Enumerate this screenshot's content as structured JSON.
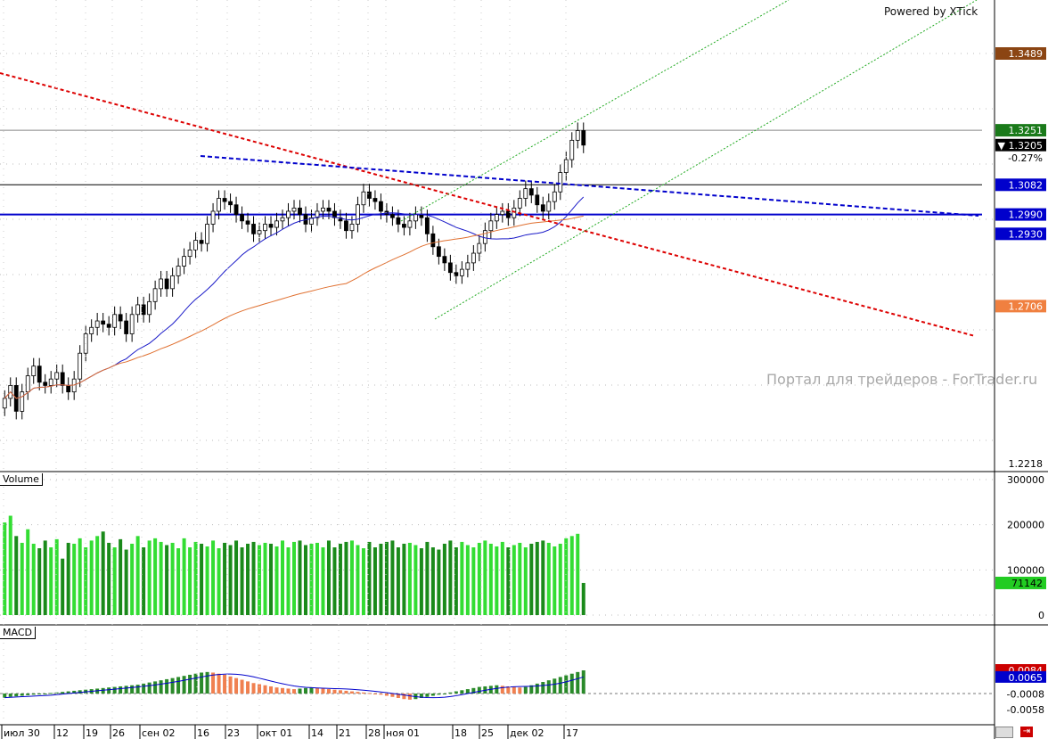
{
  "header": {
    "powered_by": "Powered by XTick",
    "watermark": "Портал для трейдеров - ForTrader.ru"
  },
  "panels": {
    "volume_label": "Volume",
    "macd_label": "MACD"
  },
  "colors": {
    "bull_volume": "#33dd33",
    "bear_volume": "#1a8a1a",
    "ma_fast": "#1a1ac8",
    "ma_slow": "#e07030",
    "trend_red": "#dd0000",
    "trend_blue": "#0000cc",
    "channel_green": "#22aa22",
    "macd_pos": "#2a8a2a",
    "macd_neg": "#f08050"
  },
  "price_badges": [
    {
      "label": "1.3489",
      "bg": "#8b4513",
      "fg": "#ffffff"
    },
    {
      "label": "1.3251",
      "bg": "#1a7a1a",
      "fg": "#ffffff"
    },
    {
      "label": "▼ 1.3205",
      "bg": "#000000",
      "fg": "#ffffff"
    },
    {
      "label": "-0.27%",
      "bg": "#ffffff",
      "fg": "#000000"
    },
    {
      "label": "1.3082",
      "bg": "#0000cc",
      "fg": "#ffffff"
    },
    {
      "label": "1.2990",
      "bg": "#0000cc",
      "fg": "#ffffff"
    },
    {
      "label": "1.2930",
      "bg": "#0000cc",
      "fg": "#ffffff"
    },
    {
      "label": "1.2706",
      "bg": "#f08040",
      "fg": "#ffffff"
    },
    {
      "label": "1.2218",
      "bg": "#ffffff",
      "fg": "#000000"
    }
  ],
  "volume_axis": [
    "300000",
    "200000",
    "100000",
    "0"
  ],
  "volume_badge": "71142",
  "macd_axis": [
    "-0.0008",
    "-0.0058"
  ],
  "macd_badges": [
    {
      "label": "0.0084",
      "bg": "#cc0000",
      "fg": "#ffffff"
    },
    {
      "label": "0.0065",
      "bg": "#0000cc",
      "fg": "#ffffff"
    }
  ],
  "chart_data": {
    "type": "candlestick",
    "x_tick_labels": [
      "июл 30",
      "12",
      "19",
      "26",
      "сен 02",
      "16",
      "23",
      "окт 01",
      "14",
      "21",
      "28",
      "ноя 01",
      "18",
      "25",
      "дек 02",
      "17"
    ],
    "price_range": [
      1.2218,
      1.3489
    ],
    "close_series": [
      1.242,
      1.246,
      1.238,
      1.244,
      1.249,
      1.252,
      1.247,
      1.246,
      1.248,
      1.25,
      1.246,
      1.244,
      1.248,
      1.256,
      1.262,
      1.264,
      1.266,
      1.265,
      1.264,
      1.268,
      1.266,
      1.262,
      1.268,
      1.271,
      1.268,
      1.272,
      1.276,
      1.279,
      1.276,
      1.28,
      1.283,
      1.286,
      1.288,
      1.291,
      1.29,
      1.296,
      1.3,
      1.304,
      1.303,
      1.302,
      1.299,
      1.297,
      1.296,
      1.293,
      1.294,
      1.296,
      1.295,
      1.297,
      1.298,
      1.3,
      1.301,
      1.299,
      1.296,
      1.298,
      1.3,
      1.301,
      1.3,
      1.298,
      1.297,
      1.294,
      1.296,
      1.302,
      1.306,
      1.304,
      1.303,
      1.3,
      1.299,
      1.298,
      1.296,
      1.295,
      1.297,
      1.299,
      1.298,
      1.293,
      1.289,
      1.286,
      1.284,
      1.281,
      1.28,
      1.282,
      1.284,
      1.287,
      1.29,
      1.294,
      1.297,
      1.299,
      1.3,
      1.298,
      1.301,
      1.304,
      1.307,
      1.305,
      1.302,
      1.3,
      1.303,
      1.306,
      1.312,
      1.316,
      1.322,
      1.325,
      1.3205
    ],
    "volume_series": [
      205000,
      220000,
      175000,
      160000,
      190000,
      158000,
      148000,
      165000,
      150000,
      168000,
      125000,
      160000,
      158000,
      170000,
      150000,
      165000,
      175000,
      185000,
      160000,
      150000,
      168000,
      145000,
      158000,
      175000,
      150000,
      165000,
      170000,
      162000,
      155000,
      160000,
      148000,
      170000,
      150000,
      162000,
      158000,
      152000,
      165000,
      148000,
      160000,
      155000,
      165000,
      150000,
      158000,
      162000,
      155000,
      160000,
      158000,
      152000,
      165000,
      150000,
      162000,
      165000,
      155000,
      158000,
      160000,
      150000,
      165000,
      150000,
      158000,
      162000,
      165000,
      155000,
      148000,
      162000,
      150000,
      158000,
      162000,
      165000,
      150000,
      158000,
      160000,
      155000,
      148000,
      162000,
      150000,
      145000,
      158000,
      165000,
      150000,
      162000,
      155000,
      150000,
      160000,
      165000,
      158000,
      152000,
      162000,
      150000,
      155000,
      160000,
      150000,
      158000,
      162000,
      165000,
      160000,
      152000,
      158000,
      170000,
      175000,
      180000,
      71142
    ],
    "macd_series": [
      -0.0015,
      -0.0012,
      -0.001,
      -0.0008,
      -0.0006,
      -0.0004,
      -0.0002,
      0.0,
      0.0002,
      0.0004,
      0.0006,
      0.0008,
      0.001,
      0.0012,
      0.0014,
      0.0016,
      0.0018,
      0.002,
      0.0022,
      0.0024,
      0.0026,
      0.0028,
      0.003,
      0.0032,
      0.0036,
      0.004,
      0.0044,
      0.0048,
      0.0052,
      0.0056,
      0.006,
      0.0064,
      0.0068,
      0.0072,
      0.0076,
      0.0078,
      0.0076,
      0.0072,
      0.0068,
      0.0062,
      0.0056,
      0.005,
      0.0044,
      0.0038,
      0.0034,
      0.003,
      0.0026,
      0.0022,
      0.002,
      0.0018,
      0.0016,
      0.0018,
      0.002,
      0.0022,
      0.002,
      0.0018,
      0.0016,
      0.0014,
      0.0012,
      0.001,
      0.0008,
      0.0006,
      0.0004,
      0.0002,
      0.0,
      -0.0004,
      -0.0008,
      -0.0012,
      -0.0016,
      -0.002,
      -0.0022,
      -0.002,
      -0.0016,
      -0.0012,
      -0.0008,
      -0.0004,
      0.0,
      0.0004,
      0.0008,
      0.0012,
      0.0016,
      0.002,
      0.0024,
      0.0026,
      0.0028,
      0.003,
      0.0028,
      0.0026,
      0.0024,
      0.0022,
      0.0024,
      0.003,
      0.0036,
      0.0042,
      0.0048,
      0.0054,
      0.006,
      0.0066,
      0.0072,
      0.0078,
      0.0084
    ]
  }
}
